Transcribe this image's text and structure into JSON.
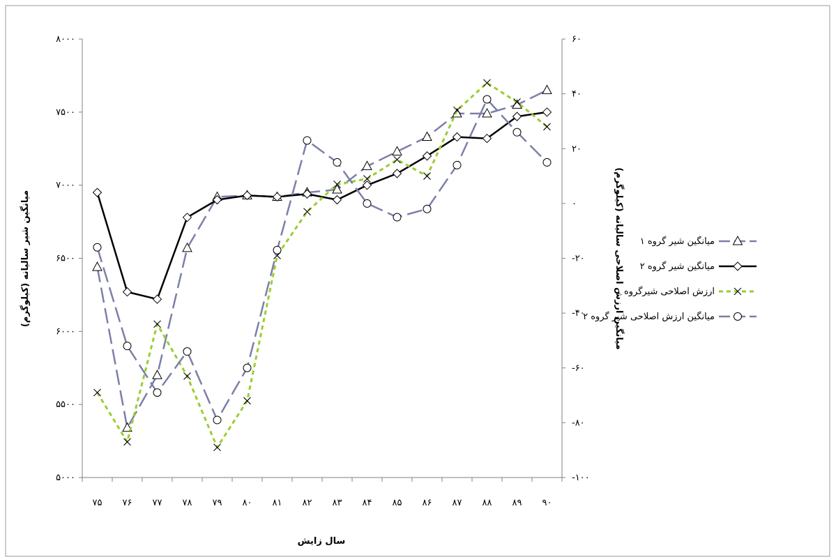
{
  "chart_data": {
    "type": "line",
    "categories": [
      "۷۵",
      "۷۶",
      "۷۷",
      "۷۸",
      "۷۹",
      "۸۰",
      "۸۱",
      "۸۲",
      "۸۳",
      "۸۴",
      "۸۵",
      "۸۶",
      "۸۷",
      "۸۸",
      "۸۹",
      "۹۰"
    ],
    "xlabel": "سال زایش",
    "ylabel_left": "میانگین شیر سالیانه (کیلوگرم)",
    "ylabel_right": "میانگین ارزش اصلاحی سالیانه (کیلوگرم)",
    "ylim_left": [
      5000,
      8000
    ],
    "ylim_right": [
      -100,
      60
    ],
    "yticks_left": [
      {
        "value": 5000,
        "label": "۵۰۰۰"
      },
      {
        "value": 5500,
        "label": "۵۵۰۰"
      },
      {
        "value": 6000,
        "label": "۶۰۰۰"
      },
      {
        "value": 6500,
        "label": "۶۵۰۰"
      },
      {
        "value": 7000,
        "label": "۷۰۰۰"
      },
      {
        "value": 7500,
        "label": "۷۵۰۰"
      },
      {
        "value": 8000,
        "label": "۸۰۰۰"
      }
    ],
    "yticks_right": [
      {
        "value": -100,
        "label": "-۱۰۰"
      },
      {
        "value": -80,
        "label": "-۸۰"
      },
      {
        "value": -60,
        "label": "-۶۰"
      },
      {
        "value": -40,
        "label": "-۴۰"
      },
      {
        "value": -20,
        "label": "-۲۰"
      },
      {
        "value": 0,
        "label": "۰"
      },
      {
        "value": 20,
        "label": "۲۰"
      },
      {
        "value": 40,
        "label": "۴۰"
      },
      {
        "value": 60,
        "label": "۶۰"
      }
    ],
    "grid": false,
    "legend_position": "right",
    "series": [
      {
        "name": "میانگین شیر گروه ۱",
        "axis": "left",
        "marker": "triangle",
        "dash": "long",
        "color": "#7b7fa8",
        "values": [
          6440,
          5340,
          5700,
          6570,
          6920,
          6930,
          6920,
          6950,
          6970,
          7130,
          7230,
          7330,
          7490,
          7490,
          7550,
          7650
        ]
      },
      {
        "name": "میانگین شیر گروه ۲",
        "axis": "left",
        "marker": "diamond",
        "dash": "solid",
        "color": "#000000",
        "values": [
          6950,
          6270,
          6220,
          6780,
          6900,
          6930,
          6920,
          6940,
          6900,
          7000,
          7080,
          7200,
          7330,
          7320,
          7470,
          7500
        ]
      },
      {
        "name": "ارزش اصلاحی شیرگروه ۱",
        "axis": "right",
        "marker": "x",
        "dash": "dotted",
        "color": "#9acd32",
        "values": [
          -69,
          -87,
          -44,
          -63,
          -89,
          -72,
          -19,
          -3,
          7,
          9,
          16,
          10,
          34,
          44,
          37,
          28
        ]
      },
      {
        "name": "میانگین ارزش اصلاحی شیر گروه ۲",
        "axis": "right",
        "marker": "circle",
        "dash": "long",
        "color": "#7b7fa8",
        "values": [
          -16,
          -52,
          -69,
          -54,
          -79,
          -60,
          -17,
          23,
          15,
          0,
          -5,
          -2,
          14,
          38,
          26,
          15
        ]
      }
    ]
  }
}
